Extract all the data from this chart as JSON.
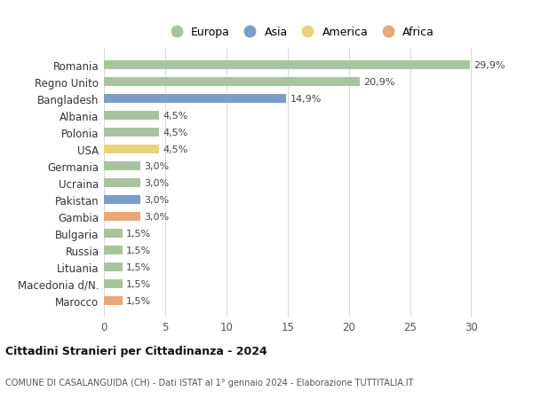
{
  "countries": [
    "Romania",
    "Regno Unito",
    "Bangladesh",
    "Albania",
    "Polonia",
    "USA",
    "Germania",
    "Ucraina",
    "Pakistan",
    "Gambia",
    "Bulgaria",
    "Russia",
    "Lituania",
    "Macedonia d/N.",
    "Marocco"
  ],
  "values": [
    29.9,
    20.9,
    14.9,
    4.5,
    4.5,
    4.5,
    3.0,
    3.0,
    3.0,
    3.0,
    1.5,
    1.5,
    1.5,
    1.5,
    1.5
  ],
  "labels": [
    "29,9%",
    "20,9%",
    "14,9%",
    "4,5%",
    "4,5%",
    "4,5%",
    "3,0%",
    "3,0%",
    "3,0%",
    "3,0%",
    "1,5%",
    "1,5%",
    "1,5%",
    "1,5%",
    "1,5%"
  ],
  "continents": [
    "Europa",
    "Europa",
    "Asia",
    "Europa",
    "Europa",
    "America",
    "Europa",
    "Europa",
    "Asia",
    "Africa",
    "Europa",
    "Europa",
    "Europa",
    "Europa",
    "Africa"
  ],
  "colors": {
    "Europa": "#a8c49e",
    "Asia": "#7b9ec8",
    "America": "#e8d47e",
    "Africa": "#e8a878"
  },
  "legend_order": [
    "Europa",
    "Asia",
    "America",
    "Africa"
  ],
  "title": "Cittadini Stranieri per Cittadinanza - 2024",
  "subtitle": "COMUNE DI CASALANGUIDA (CH) - Dati ISTAT al 1° gennaio 2024 - Elaborazione TUTTITALIA.IT",
  "xlim": [
    0,
    32
  ],
  "xticks": [
    0,
    5,
    10,
    15,
    20,
    25,
    30
  ],
  "bg_color": "#ffffff",
  "grid_color": "#d8d8d8",
  "bar_height": 0.55
}
